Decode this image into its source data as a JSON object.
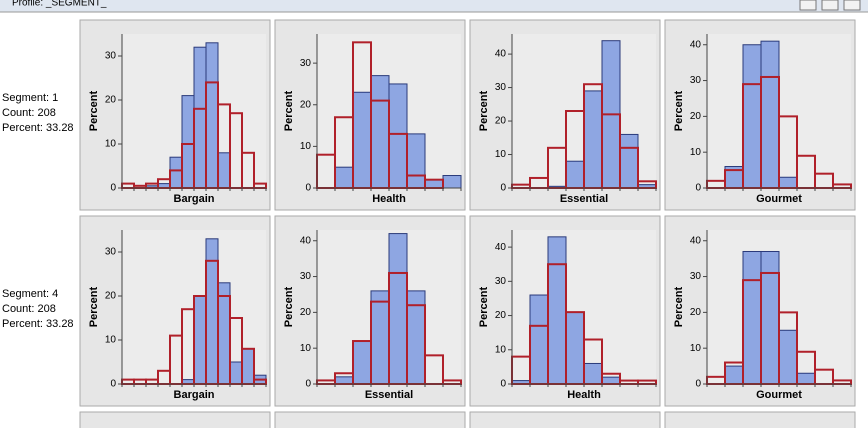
{
  "window": {
    "title": "Profile: _SEGMENT_"
  },
  "segments": [
    {
      "segment": "Segment: 1",
      "count": "Count: 208",
      "percent": "Percent: 33.28"
    },
    {
      "segment": "Segment: 4",
      "count": "Count: 208",
      "percent": "Percent: 33.28"
    }
  ],
  "chart_data": [
    {
      "type": "bar",
      "x_label": "Bargain",
      "y_label": "Percent",
      "categories": [
        null,
        null,
        null,
        null,
        null,
        null,
        null,
        null,
        null,
        null,
        null,
        null
      ],
      "series": [
        {
          "color": "#8ea6e2",
          "values": [
            0,
            0,
            0.5,
            1,
            7,
            21,
            32,
            33,
            8,
            0,
            0,
            0
          ]
        },
        {
          "color": "#b0202a",
          "values": [
            1,
            0.5,
            1,
            2,
            4,
            10,
            18,
            24,
            19,
            17,
            8,
            1
          ]
        }
      ],
      "ylim": [
        0,
        35
      ],
      "yticks": [
        0,
        10,
        20,
        30
      ]
    },
    {
      "type": "bar",
      "x_label": "Health",
      "y_label": "Percent",
      "categories": [
        null,
        null,
        null,
        null,
        null,
        null,
        null,
        null
      ],
      "series": [
        {
          "color": "#8ea6e2",
          "values": [
            0,
            5,
            23,
            27,
            25,
            13,
            2,
            3
          ]
        },
        {
          "color": "#b0202a",
          "values": [
            8,
            17,
            35,
            21,
            13,
            3,
            2,
            0
          ]
        }
      ],
      "ylim": [
        0,
        37
      ],
      "yticks": [
        0,
        10,
        20,
        30
      ]
    },
    {
      "type": "bar",
      "x_label": "Essential",
      "y_label": "Percent",
      "categories": [
        null,
        null,
        null,
        null,
        null,
        null,
        null,
        null
      ],
      "series": [
        {
          "color": "#8ea6e2",
          "values": [
            0,
            0,
            0.5,
            8,
            29,
            44,
            16,
            1
          ]
        },
        {
          "color": "#b0202a",
          "values": [
            1,
            3,
            12,
            23,
            31,
            22,
            12,
            2
          ]
        }
      ],
      "ylim": [
        0,
        46
      ],
      "yticks": [
        0,
        10,
        20,
        30,
        40
      ]
    },
    {
      "type": "bar",
      "x_label": "Gourmet",
      "y_label": "Percent",
      "categories": [
        null,
        null,
        null,
        null,
        null,
        null,
        null,
        null
      ],
      "series": [
        {
          "color": "#8ea6e2",
          "values": [
            0,
            6,
            40,
            41,
            3,
            0,
            0,
            0
          ]
        },
        {
          "color": "#b0202a",
          "values": [
            2,
            5,
            29,
            31,
            20,
            9,
            4,
            1
          ]
        }
      ],
      "ylim": [
        0,
        43
      ],
      "yticks": [
        0,
        10,
        20,
        30,
        40
      ]
    },
    {
      "type": "bar",
      "x_label": "Bargain",
      "y_label": "Percent",
      "categories": [
        null,
        null,
        null,
        null,
        null,
        null,
        null,
        null,
        null,
        null,
        null,
        null
      ],
      "series": [
        {
          "color": "#8ea6e2",
          "values": [
            0,
            0,
            0,
            0,
            0,
            1,
            20,
            33,
            23,
            5,
            8,
            2
          ]
        },
        {
          "color": "#b0202a",
          "values": [
            1,
            1,
            1,
            3,
            11,
            17,
            20,
            28,
            20,
            15,
            8,
            1
          ]
        }
      ],
      "ylim": [
        0,
        35
      ],
      "yticks": [
        0,
        10,
        20,
        30
      ]
    },
    {
      "type": "bar",
      "x_label": "Essential",
      "y_label": "Percent",
      "categories": [
        null,
        null,
        null,
        null,
        null,
        null,
        null,
        null
      ],
      "series": [
        {
          "color": "#8ea6e2",
          "values": [
            0,
            2,
            12,
            26,
            42,
            26,
            0,
            0
          ]
        },
        {
          "color": "#b0202a",
          "values": [
            1,
            3,
            12,
            23,
            31,
            22,
            8,
            1
          ]
        }
      ],
      "ylim": [
        0,
        43
      ],
      "yticks": [
        0,
        10,
        20,
        30,
        40
      ]
    },
    {
      "type": "bar",
      "x_label": "Health",
      "y_label": "Percent",
      "categories": [
        null,
        null,
        null,
        null,
        null,
        null,
        null,
        null
      ],
      "series": [
        {
          "color": "#8ea6e2",
          "values": [
            1,
            26,
            43,
            21,
            6,
            2,
            0,
            0
          ]
        },
        {
          "color": "#b0202a",
          "values": [
            8,
            17,
            35,
            21,
            13,
            3,
            1,
            1
          ]
        }
      ],
      "ylim": [
        0,
        45
      ],
      "yticks": [
        0,
        10,
        20,
        30,
        40
      ]
    },
    {
      "type": "bar",
      "x_label": "Gourmet",
      "y_label": "Percent",
      "categories": [
        null,
        null,
        null,
        null,
        null,
        null,
        null,
        null
      ],
      "series": [
        {
          "color": "#8ea6e2",
          "values": [
            0,
            5,
            37,
            37,
            15,
            3,
            0,
            0
          ]
        },
        {
          "color": "#b0202a",
          "values": [
            2,
            6,
            29,
            31,
            20,
            9,
            4,
            1
          ]
        }
      ],
      "ylim": [
        0,
        43
      ],
      "yticks": [
        0,
        10,
        20,
        30,
        40
      ]
    }
  ]
}
